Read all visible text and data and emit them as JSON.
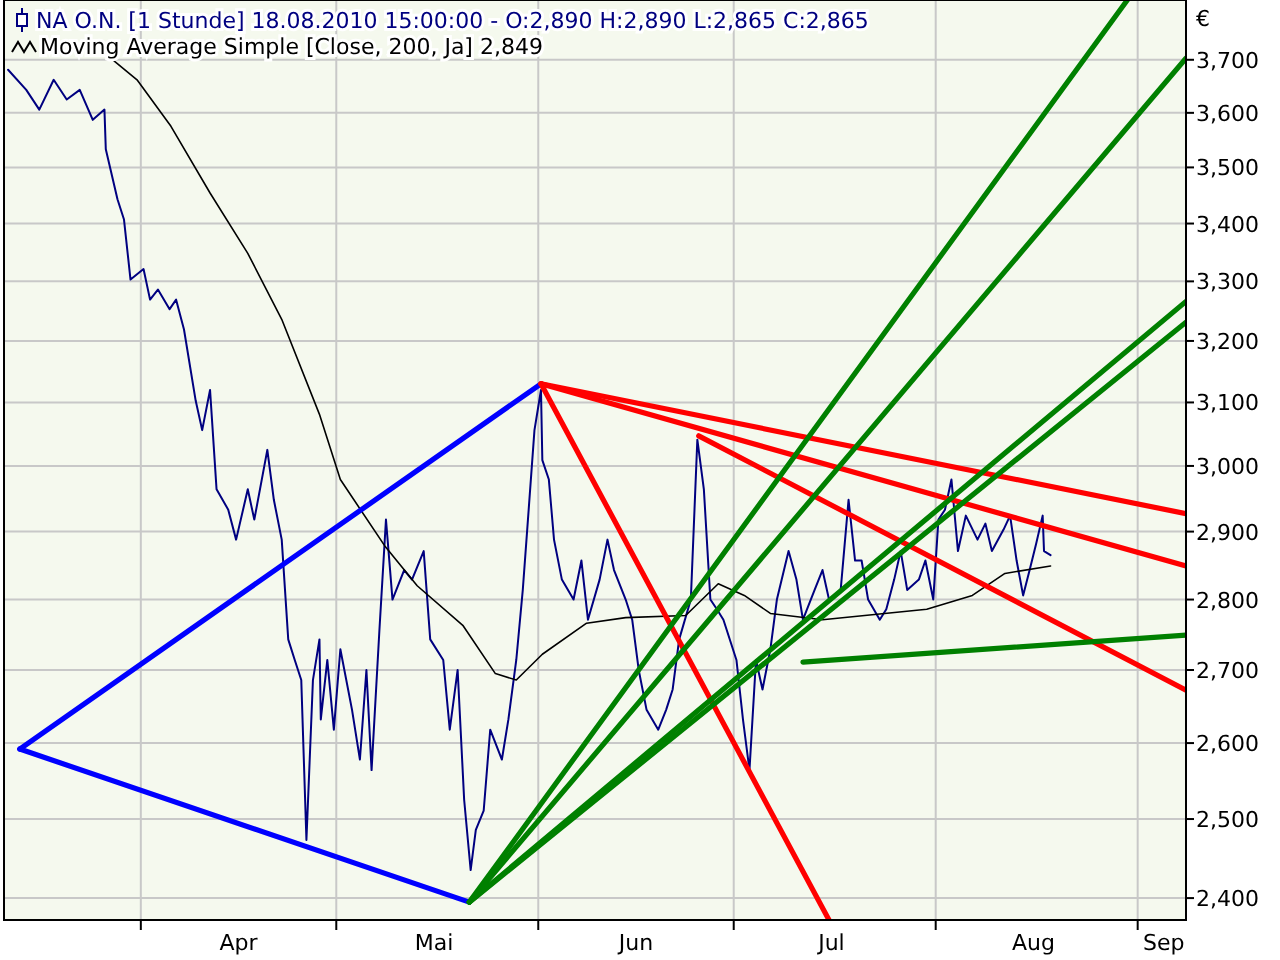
{
  "chart_data": {
    "type": "line",
    "title": "NA O.N. [1 Stunde] 18.08.2010 15:00:00 - O:2,890 H:2,890 L:2,865 C:2,865",
    "ylabel": "€",
    "log": true,
    "grid": true,
    "legend": "top left",
    "xlim": [
      "2010-03-11",
      "2010-09-08T10:00"
    ],
    "ylim": [
      2373,
      3816
    ],
    "xticks": [
      {
        "value": "2010-04-01",
        "label": null
      },
      {
        "value": "2010-04-16",
        "label": "Apr"
      },
      {
        "value": "2010-05-01",
        "label": null
      },
      {
        "value": "2010-05-16",
        "label": "Mai"
      },
      {
        "value": "2010-06-01",
        "label": null
      },
      {
        "value": "2010-06-16",
        "label": "Jun"
      },
      {
        "value": "2010-07-01",
        "label": null
      },
      {
        "value": "2010-07-16",
        "label": "Jul"
      },
      {
        "value": "2010-08-01",
        "label": null
      },
      {
        "value": "2010-08-16",
        "label": "Aug"
      },
      {
        "value": "2010-09-01",
        "label": null
      },
      {
        "value": "2010-09-05",
        "label": "Sep"
      }
    ],
    "yticks": [
      {
        "value": 2400,
        "label": "2,400"
      },
      {
        "value": 2500,
        "label": "2,500"
      },
      {
        "value": 2600,
        "label": "2,600"
      },
      {
        "value": 2700,
        "label": "2,700"
      },
      {
        "value": 2800,
        "label": "2,800"
      },
      {
        "value": 2900,
        "label": "2,900"
      },
      {
        "value": 3000,
        "label": "3,000"
      },
      {
        "value": 3100,
        "label": "3,100"
      },
      {
        "value": 3200,
        "label": "3,200"
      },
      {
        "value": 3300,
        "label": "3,300"
      },
      {
        "value": 3400,
        "label": "3,400"
      },
      {
        "value": 3500,
        "label": "3,500"
      },
      {
        "value": 3600,
        "label": "3,600"
      },
      {
        "value": 3700,
        "label": "3,700"
      }
    ],
    "series": [
      {
        "color": "#000080",
        "x": [
          "2010-03-11T15:00",
          "2010-03-14T10:00",
          "2010-03-16T10:00",
          "2010-03-18T15:00",
          "2010-03-20T15:00",
          "2010-03-22T15:00",
          "2010-03-24T15:00",
          "2010-03-26T10:00",
          "2010-03-26T15:00",
          "2010-03-28T10:00",
          "2010-03-29T10:00",
          "2010-03-30T10:00",
          "2010-04-01T10:00",
          "2010-04-02T10:00",
          "2010-04-03T15:00",
          "2010-04-05T10:00",
          "2010-04-06T10:00",
          "2010-04-07T15:00",
          "2010-04-09T10:00",
          "2010-04-10T10:00",
          "2010-04-11T15:00",
          "2010-04-12T15:00",
          "2010-04-14T10:00",
          "2010-04-15T15:00",
          "2010-04-17T10:00",
          "2010-04-18T10:00",
          "2010-04-20T10:00",
          "2010-04-21T10:00",
          "2010-04-22T15:00",
          "2010-04-23T15:00",
          "2010-04-24T15:00",
          "2010-04-25T15:00",
          "2010-04-26T10:00",
          "2010-04-27T10:00",
          "2010-04-28T10:00",
          "2010-04-28T15:00",
          "2010-04-29T15:00",
          "2010-04-30T15:00",
          "2010-05-01T15:00",
          "2010-05-03T10:00",
          "2010-05-04T15:00",
          "2010-05-05T15:00",
          "2010-05-06T10:00",
          "2010-05-07T15:00",
          "2010-05-08T15:00",
          "2010-05-09T15:00",
          "2010-05-11T10:00",
          "2010-05-12T15:00",
          "2010-05-14T10:00",
          "2010-05-15T10:00",
          "2010-05-17T10:00",
          "2010-05-18T10:00",
          "2010-05-19T15:00",
          "2010-05-20T15:00",
          "2010-05-21T15:00",
          "2010-05-22T10:00",
          "2010-05-23T15:00",
          "2010-05-24T15:00",
          "2010-05-26T10:00",
          "2010-05-27T10:00",
          "2010-05-28T15:00",
          "2010-05-29T15:00",
          "2010-05-30T10:00",
          "2010-05-31T10:00",
          "2010-06-01T10:00",
          "2010-06-01T15:00",
          "2010-06-02T15:00",
          "2010-06-03T10:00",
          "2010-06-04T15:00",
          "2010-06-06T10:00",
          "2010-06-07T15:00",
          "2010-06-08T15:00",
          "2010-06-10T10:00",
          "2010-06-11T15:00",
          "2010-06-12T15:00",
          "2010-06-14T10:00",
          "2010-06-15T10:00",
          "2010-06-16T10:00",
          "2010-06-17T15:00",
          "2010-06-19T10:00",
          "2010-06-20T15:00",
          "2010-06-21T15:00",
          "2010-06-22T15:00",
          "2010-06-24T10:00",
          "2010-06-25T10:00",
          "2010-06-26T10:00",
          "2010-06-27T10:00",
          "2010-06-28T10:00",
          "2010-06-29T10:00",
          "2010-07-01T10:00",
          "2010-07-02T10:00",
          "2010-07-03T10:00",
          "2010-07-04T10:00",
          "2010-07-05T10:00",
          "2010-07-06T15:00",
          "2010-07-07T15:00",
          "2010-07-09T10:00",
          "2010-07-10T15:00",
          "2010-07-11T15:00",
          "2010-07-13T10:00",
          "2010-07-14T15:00",
          "2010-07-15T15:00",
          "2010-07-17T10:00",
          "2010-07-18T15:00",
          "2010-07-19T15:00",
          "2010-07-20T15:00",
          "2010-07-21T15:00",
          "2010-07-23T10:00",
          "2010-07-24T10:00",
          "2010-07-25T15:00",
          "2010-07-26T15:00",
          "2010-07-27T15:00",
          "2010-07-29T10:00",
          "2010-07-30T10:00",
          "2010-07-31T15:00",
          "2010-08-01T10:00",
          "2010-08-02T10:00",
          "2010-08-03T10:00",
          "2010-08-04T10:00",
          "2010-08-05T15:00",
          "2010-08-07T10:00",
          "2010-08-08T15:00",
          "2010-08-09T15:00",
          "2010-08-11T10:00",
          "2010-08-12T10:00",
          "2010-08-13T10:00",
          "2010-08-14T10:00",
          "2010-08-15T10:00",
          "2010-08-16T10:00",
          "2010-08-17T10:00",
          "2010-08-17T15:00",
          "2010-08-18T15:00"
        ],
        "values": [
          3681,
          3643,
          3606,
          3662,
          3625,
          3643,
          3587,
          3606,
          3533,
          3443,
          3407,
          3303,
          3321,
          3269,
          3286,
          3253,
          3269,
          3219,
          3103,
          3056,
          3120,
          2964,
          2933,
          2888,
          2964,
          2918,
          3025,
          2948,
          2888,
          2743,
          2714,
          2686,
          2473,
          2686,
          2743,
          2632,
          2714,
          2618,
          2729,
          2645,
          2578,
          2700,
          2564,
          2757,
          2918,
          2800,
          2843,
          2829,
          2871,
          2743,
          2714,
          2618,
          2700,
          2525,
          2435,
          2486,
          2511,
          2618,
          2578,
          2632,
          2714,
          2814,
          2918,
          3056,
          3120,
          3009,
          2979,
          2888,
          2829,
          2800,
          2857,
          2771,
          2829,
          2888,
          2843,
          2800,
          2771,
          2700,
          2645,
          2618,
          2645,
          2673,
          2743,
          2800,
          3041,
          2964,
          2800,
          2786,
          2771,
          2714,
          2632,
          2564,
          2714,
          2673,
          2729,
          2800,
          2871,
          2829,
          2771,
          2814,
          2843,
          2800,
          2814,
          2948,
          2857,
          2857,
          2800,
          2771,
          2786,
          2829,
          2871,
          2814,
          2829,
          2857,
          2800,
          2918,
          2933,
          2979,
          2871,
          2924,
          2888,
          2912,
          2871,
          2903,
          2924,
          2857,
          2806,
          2843,
          2882,
          2924,
          2871,
          2865
        ]
      },
      {
        "name": "Moving Average Simple [Close, 200, Ja] 2,849",
        "color": "#000000",
        "x": [
          "2010-03-26T15:00",
          "2010-03-31T10:00",
          "2010-04-05T15:00",
          "2010-04-11T15:00",
          "2010-04-17T10:00",
          "2010-04-22T15:00",
          "2010-04-28T10:00",
          "2010-05-01T15:00",
          "2010-05-08T10:00",
          "2010-05-13T10:00",
          "2010-05-20T10:00",
          "2010-05-25T10:00",
          "2010-05-28T15:00",
          "2010-06-01T15:00",
          "2010-06-08T10:00",
          "2010-06-14T10:00",
          "2010-06-23T15:00",
          "2010-06-28T15:00",
          "2010-07-02T15:00",
          "2010-07-06T15:00",
          "2010-07-14T15:00",
          "2010-07-30T15:00",
          "2010-08-06T15:00",
          "2010-08-11T15:00",
          "2010-08-18T15:00"
        ],
        "values": [
          3711,
          3662,
          3575,
          3454,
          3348,
          3236,
          3081,
          2979,
          2879,
          2820,
          2763,
          2695,
          2686,
          2722,
          2766,
          2774,
          2777,
          2823,
          2806,
          2780,
          2771,
          2786,
          2806,
          2838,
          2849
        ]
      },
      {
        "color": "#0000ff",
        "x": [
          "2010-03-13T10:00",
          "2010-06-01T10:00"
        ],
        "values": [
          2592,
          3130
        ]
      },
      {
        "color": "#0000ff",
        "x": [
          "2010-03-13T10:00",
          "2010-05-21T10:00"
        ],
        "values": [
          2592,
          2395
        ]
      },
      {
        "color": "#ff0000",
        "x": [
          "2010-06-01T10:00",
          "2010-07-15T15:00"
        ],
        "values": [
          3130,
          2373
        ]
      },
      {
        "color": "#ff0000",
        "x": [
          "2010-06-01T10:00",
          "2010-09-08T10:00"
        ],
        "values": [
          3130,
          2927
        ]
      },
      {
        "color": "#ff0000",
        "x": [
          "2010-06-01T10:00",
          "2010-09-08T10:00"
        ],
        "values": [
          3130,
          2849
        ]
      },
      {
        "color": "#ff0000",
        "x": [
          "2010-06-25T15:00",
          "2010-09-08T10:00"
        ],
        "values": [
          3047,
          2672
        ]
      },
      {
        "color": "#008000",
        "x": [
          "2010-05-21T10:00",
          "2010-08-30T10:00"
        ],
        "values": [
          2395,
          3816
        ]
      },
      {
        "color": "#008000",
        "x": [
          "2010-05-21T10:00",
          "2010-09-08T10:00"
        ],
        "values": [
          2395,
          3703
        ]
      },
      {
        "color": "#008000",
        "x": [
          "2010-05-21T10:00",
          "2010-09-08T10:00"
        ],
        "values": [
          2395,
          3266
        ]
      },
      {
        "color": "#008000",
        "x": [
          "2010-05-21T10:00",
          "2010-09-08T10:00"
        ],
        "values": [
          2395,
          3231
        ]
      },
      {
        "color": "#008000",
        "x": [
          "2010-07-11T15:00",
          "2010-09-08T10:00"
        ],
        "values": [
          2711,
          2749
        ]
      }
    ]
  }
}
